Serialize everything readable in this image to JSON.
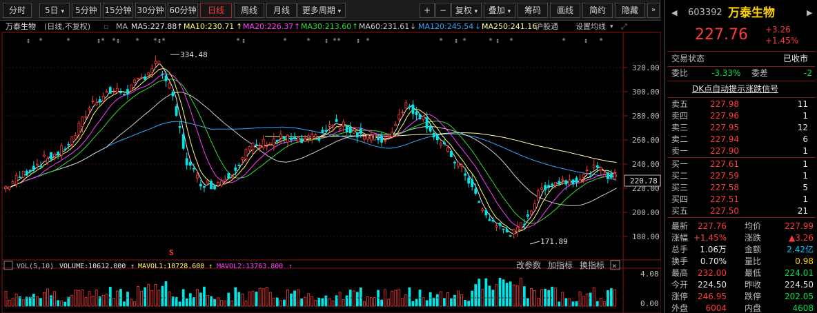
{
  "toolbar": {
    "periods": [
      "分时",
      "5日",
      "5分钟",
      "15分钟",
      "30分钟",
      "60分钟",
      "日线",
      "周线",
      "月线",
      "更多周期"
    ],
    "active_period": "日线",
    "tools": [
      "+",
      "−",
      "复权",
      "叠加",
      "筹码",
      "画线",
      "简约",
      "隐藏"
    ]
  },
  "chart_header": {
    "name": "万泰生物",
    "mode": "(日线,不复权)",
    "ma_label": "MA",
    "ma5": "MA5:227.88",
    "ma10": "MA10:230.71",
    "ma20": "MA20:226.37",
    "ma30": "MA30:213.60",
    "ma60": "MA60:231.61",
    "ma120": "MA120:245.54",
    "ma250": "MA250:241.16",
    "exchange": "沪股通",
    "settings": "设置均线"
  },
  "price_axis": [
    "320.00",
    "300.00",
    "280.00",
    "260.00",
    "240.00",
    "220.00",
    "200.00",
    "180.00"
  ],
  "current_price_tag": "220.78",
  "annotations": {
    "high": "334.48",
    "low": "171.89"
  },
  "volume_header": {
    "label": "VOL(5,10)",
    "volume": "VOLUME:10612.000",
    "mavol1": "MAVOL1:10728.600",
    "mavol2": "MAVOL2:13763.800",
    "tools": [
      "改参数",
      "加指标",
      "换指标"
    ]
  },
  "volume_axis": [
    "4.08",
    "0.00"
  ],
  "quote": {
    "code": "603392",
    "name": "万泰生物",
    "price": "227.76",
    "change": "+3.26",
    "change_pct": "+1.45%",
    "status_label": "交易状态",
    "status_value": "已收市",
    "weibi_label": "委比",
    "weibi_value": "-3.33%",
    "weicha_label": "委差",
    "weicha_value": "-2",
    "signal_link": "DK点自动提示涨跌信号",
    "asks": [
      {
        "label": "卖五",
        "price": "227.98",
        "vol": "11"
      },
      {
        "label": "卖四",
        "price": "227.96",
        "vol": "1"
      },
      {
        "label": "卖三",
        "price": "227.95",
        "vol": "12"
      },
      {
        "label": "卖二",
        "price": "227.94",
        "vol": "6"
      },
      {
        "label": "卖一",
        "price": "227.90",
        "vol": "1"
      }
    ],
    "bids": [
      {
        "label": "买一",
        "price": "227.61",
        "vol": "1"
      },
      {
        "label": "买二",
        "price": "227.59",
        "vol": "1"
      },
      {
        "label": "买三",
        "price": "227.58",
        "vol": "5"
      },
      {
        "label": "买四",
        "price": "227.51",
        "vol": "1"
      },
      {
        "label": "买五",
        "price": "227.50",
        "vol": "21"
      }
    ],
    "stats": [
      {
        "l1": "最新",
        "v1": "227.76",
        "c1": "red",
        "l2": "均价",
        "v2": "227.99",
        "c2": "red"
      },
      {
        "l1": "涨幅",
        "v1": "+1.45%",
        "c1": "red",
        "l2": "涨跌",
        "v2": "▲3.26",
        "c2": "red"
      },
      {
        "l1": "总手",
        "v1": "1.06万",
        "c1": "white",
        "l2": "金额",
        "v2": "2.42亿",
        "c2": "cyan"
      },
      {
        "l1": "换手",
        "v1": "0.70%",
        "c1": "white",
        "l2": "量比",
        "v2": "0.98",
        "c2": "yellow"
      },
      {
        "l1": "最高",
        "v1": "232.00",
        "c1": "red",
        "l2": "最低",
        "v2": "224.01",
        "c2": "green"
      },
      {
        "l1": "今开",
        "v1": "224.50",
        "c1": "white",
        "l2": "昨收",
        "v2": "224.50",
        "c2": "white"
      },
      {
        "l1": "涨停",
        "v1": "246.95",
        "c1": "red",
        "l2": "跌停",
        "v2": "202.05",
        "c2": "green"
      },
      {
        "l1": "外盘",
        "v1": "6004",
        "c1": "red",
        "l2": "内盘",
        "v2": "4608",
        "c2": "green"
      }
    ]
  },
  "colors": {
    "up": "#ff3b3b",
    "down": "#00e5e5",
    "ma5": "#e8e8e8",
    "ma10": "#ffff66",
    "ma20": "#ff40ff",
    "ma30": "#33dd33",
    "ma60": "#d0d0d0",
    "ma120": "#33aaff",
    "ma250": "#ffffaa"
  }
}
